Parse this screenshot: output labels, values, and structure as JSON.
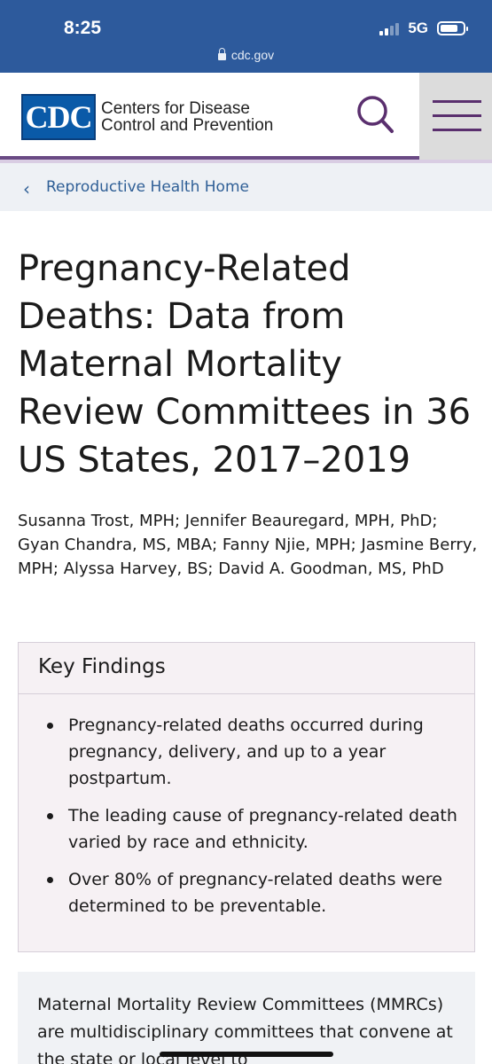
{
  "status_bar": {
    "time": "8:25",
    "network": "5G",
    "battery_level": 0.8
  },
  "browser": {
    "url": "cdc.gov"
  },
  "header": {
    "logo_abbr": "CDC",
    "logo_line1": "Centers for Disease",
    "logo_line2": "Control and Prevention",
    "search_icon": "search-icon",
    "menu_icon": "hamburger-menu-icon",
    "accent_color": "#6a4a84"
  },
  "breadcrumb": {
    "label": "Reproductive Health Home"
  },
  "article": {
    "title": "Pregnancy-Related Deaths: Data from Maternal Mortality Review Committees in 36 US States, 2017–2019",
    "authors": "Susanna Trost, MPH; Jennifer Beauregard, MPH, PhD; Gyan Chandra, MS, MBA; Fanny Njie, MPH; Jasmine Berry, MPH; Alyssa Harvey, BS; David A. Goodman, MS, PhD"
  },
  "key_findings": {
    "heading": "Key Findings",
    "items": [
      "Pregnancy-related deaths occurred during pregnancy, delivery, and up to a year postpartum.",
      "The leading cause of pregnancy-related death varied by race and ethnicity.",
      "Over 80% of pregnancy-related deaths were determined to be preventable."
    ]
  },
  "intro": {
    "text": "Maternal Mortality Review Committees (MMRCs) are multidisciplinary committees that convene at the state or local level to"
  }
}
